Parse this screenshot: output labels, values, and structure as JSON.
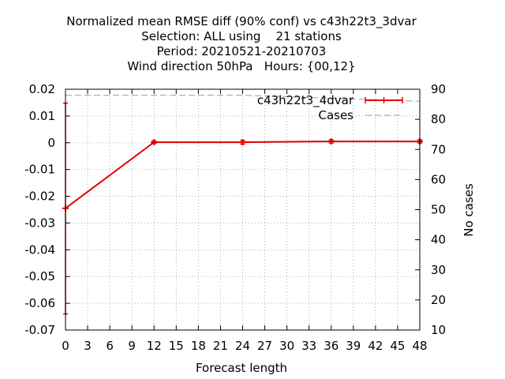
{
  "chart_data": {
    "type": "line",
    "title_lines": [
      "Normalized mean RMSE diff (90% conf) vs c43h22t3_3dvar",
      "Selection: ALL using    21 stations",
      "Period: 20210521-20210703",
      "Wind direction 50hPa   Hours: {00,12}"
    ],
    "xlabel": "Forecast length",
    "ylabel": "",
    "y2label": "No cases",
    "xlim": [
      0,
      48
    ],
    "ylim": [
      -0.07,
      0.02
    ],
    "y2lim": [
      10,
      90
    ],
    "x_ticks": [
      0,
      3,
      6,
      9,
      12,
      15,
      18,
      21,
      24,
      27,
      30,
      33,
      36,
      39,
      42,
      45,
      48
    ],
    "y_ticks": [
      "-0.07",
      "-0.06",
      "-0.05",
      "-0.04",
      "-0.03",
      "-0.02",
      "-0.01",
      "0",
      "0.01",
      "0.02"
    ],
    "y_tick_values": [
      -0.07,
      -0.06,
      -0.05,
      -0.04,
      -0.03,
      -0.02,
      -0.01,
      0,
      0.01,
      0.02
    ],
    "y2_ticks": [
      10,
      20,
      30,
      40,
      50,
      60,
      70,
      80,
      90
    ],
    "grid": true,
    "legend_position": "top-right",
    "series": [
      {
        "name": "c43h22t3_4dvar",
        "color": "#e00000",
        "x": [
          0,
          12,
          24,
          36,
          48
        ],
        "y": [
          -0.0245,
          0.0002,
          0.0002,
          0.0005,
          0.0005
        ],
        "err_low": [
          -0.064,
          -0.0003,
          -0.0005,
          -0.0001,
          -0.0001
        ],
        "err_high": [
          0.0148,
          0.0007,
          0.0009,
          0.0011,
          0.0011
        ]
      },
      {
        "name": "Cases",
        "color": "#a0a0a0",
        "axis": "y2",
        "x": [
          0,
          12,
          24,
          36,
          48
        ],
        "y": [
          88,
          88,
          88,
          87,
          86
        ]
      }
    ]
  }
}
